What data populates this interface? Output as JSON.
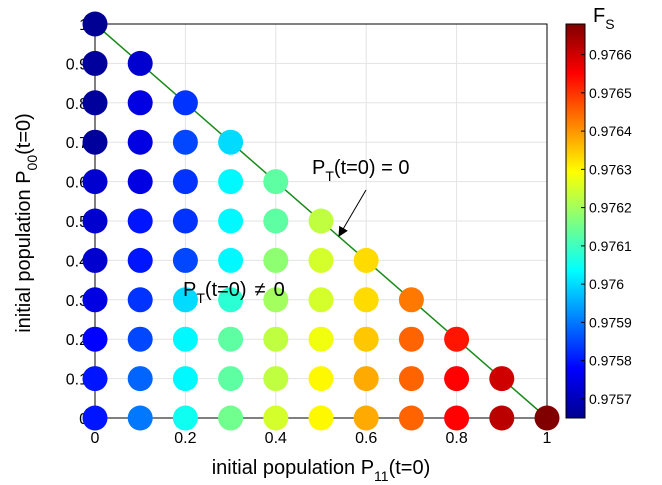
{
  "chart_data": {
    "type": "scatter",
    "xlabel": "initial population P",
    "xlabel_sub": "11",
    "xlabel_tail": "(t=0)",
    "ylabel": "initial population P",
    "ylabel_sub": "00",
    "ylabel_tail": "(t=0)",
    "xlim": [
      0,
      1
    ],
    "ylim": [
      0,
      1
    ],
    "grid": true,
    "x_ticks": [
      "0",
      "0.2",
      "0.4",
      "0.6",
      "0.8",
      "1"
    ],
    "y_ticks": [
      "0",
      "0.1",
      "0.2",
      "0.3",
      "0.4",
      "0.5",
      "0.6",
      "0.7",
      "0.8",
      "0.9",
      "1"
    ],
    "colorbar": {
      "label": "F",
      "label_sub": "S",
      "range": [
        0.97565,
        0.97668
      ],
      "ticks": [
        "0.9757",
        "0.9758",
        "0.9759",
        "0.976",
        "0.9761",
        "0.9762",
        "0.9763",
        "0.9764",
        "0.9765",
        "0.9766"
      ],
      "colormap": "jet"
    },
    "line": {
      "from": [
        0,
        1
      ],
      "to": [
        1,
        0
      ],
      "color": "#1a8a1a"
    },
    "annotations": {
      "zero": {
        "main": "P",
        "sub": "T",
        "tail": "(t=0) = 0",
        "arrow_to": [
          0.5,
          0.5
        ]
      },
      "nonzero": {
        "main": "P",
        "sub": "T",
        "tail": "(t=0)",
        "symbol": "≠",
        "value": "0"
      }
    },
    "values_by_row": [
      [
        0.9758,
        0.9759,
        0.97605,
        0.97615,
        0.97625,
        0.9763,
        0.97638,
        0.97645,
        0.97655,
        0.97662,
        0.97668
      ],
      [
        0.9758,
        0.97588,
        0.97603,
        0.97613,
        0.97623,
        0.9763,
        0.97638,
        0.97645,
        0.97655,
        0.9766
      ],
      [
        0.97578,
        0.97585,
        0.97603,
        0.97613,
        0.97623,
        0.97628,
        0.97635,
        0.97645,
        0.97653
      ],
      [
        0.97575,
        0.97583,
        0.976,
        0.97608,
        0.9762,
        0.97625,
        0.97633,
        0.97643
      ],
      [
        0.97573,
        0.9758,
        0.97585,
        0.97603,
        0.97618,
        0.97625,
        0.97633
      ],
      [
        0.97573,
        0.9758,
        0.97583,
        0.97603,
        0.97613,
        0.97623
      ],
      [
        0.97573,
        0.97575,
        0.97583,
        0.97603,
        0.97613
      ],
      [
        0.97568,
        0.97575,
        0.97585,
        0.976
      ],
      [
        0.97568,
        0.97575,
        0.97583
      ],
      [
        0.97568,
        0.97573
      ],
      [
        0.97567
      ]
    ]
  }
}
